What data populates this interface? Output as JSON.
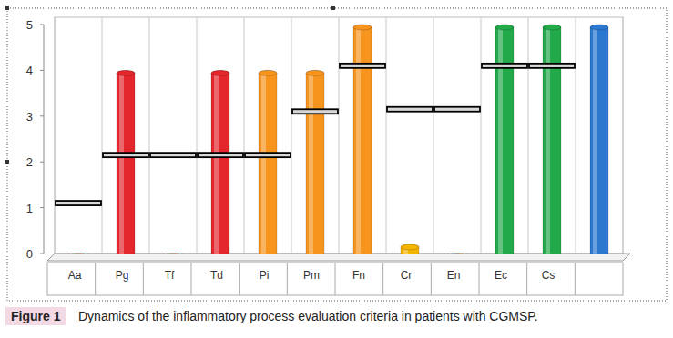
{
  "chart_data": {
    "type": "bar",
    "title": "Dynamics of the inflammatory process evaluation criteria in patients with CGMSP.",
    "annotations": [
      "Figure 1"
    ],
    "categories": [
      "Aa",
      "Pg",
      "Tf",
      "Td",
      "Pi",
      "Pm",
      "Fn",
      "Cr",
      "En",
      "Ec",
      "Cs",
      null
    ],
    "series": [
      {
        "type": "bar",
        "values": [
          0,
          4,
          0,
          4,
          4,
          4,
          5,
          0.2,
          0,
          5,
          5,
          5
        ],
        "colors": [
          "#e3262b",
          "#e3262b",
          "#e3262b",
          "#e3262b",
          "#f7941d",
          "#f7941d",
          "#f7941d",
          "#f5b400",
          "#f7941d",
          "#22a94a",
          "#22a94a",
          "#2a78d0"
        ]
      },
      {
        "type": "scatter",
        "marker": "dash",
        "color": "#000000",
        "values": [
          1.1,
          2.15,
          2.15,
          2.15,
          2.15,
          3.1,
          4.1,
          3.15,
          3.15,
          4.1,
          4.1,
          null
        ]
      }
    ],
    "ylim": [
      0,
      5
    ],
    "yticks": [
      0,
      1,
      2,
      3,
      4,
      5
    ]
  }
}
